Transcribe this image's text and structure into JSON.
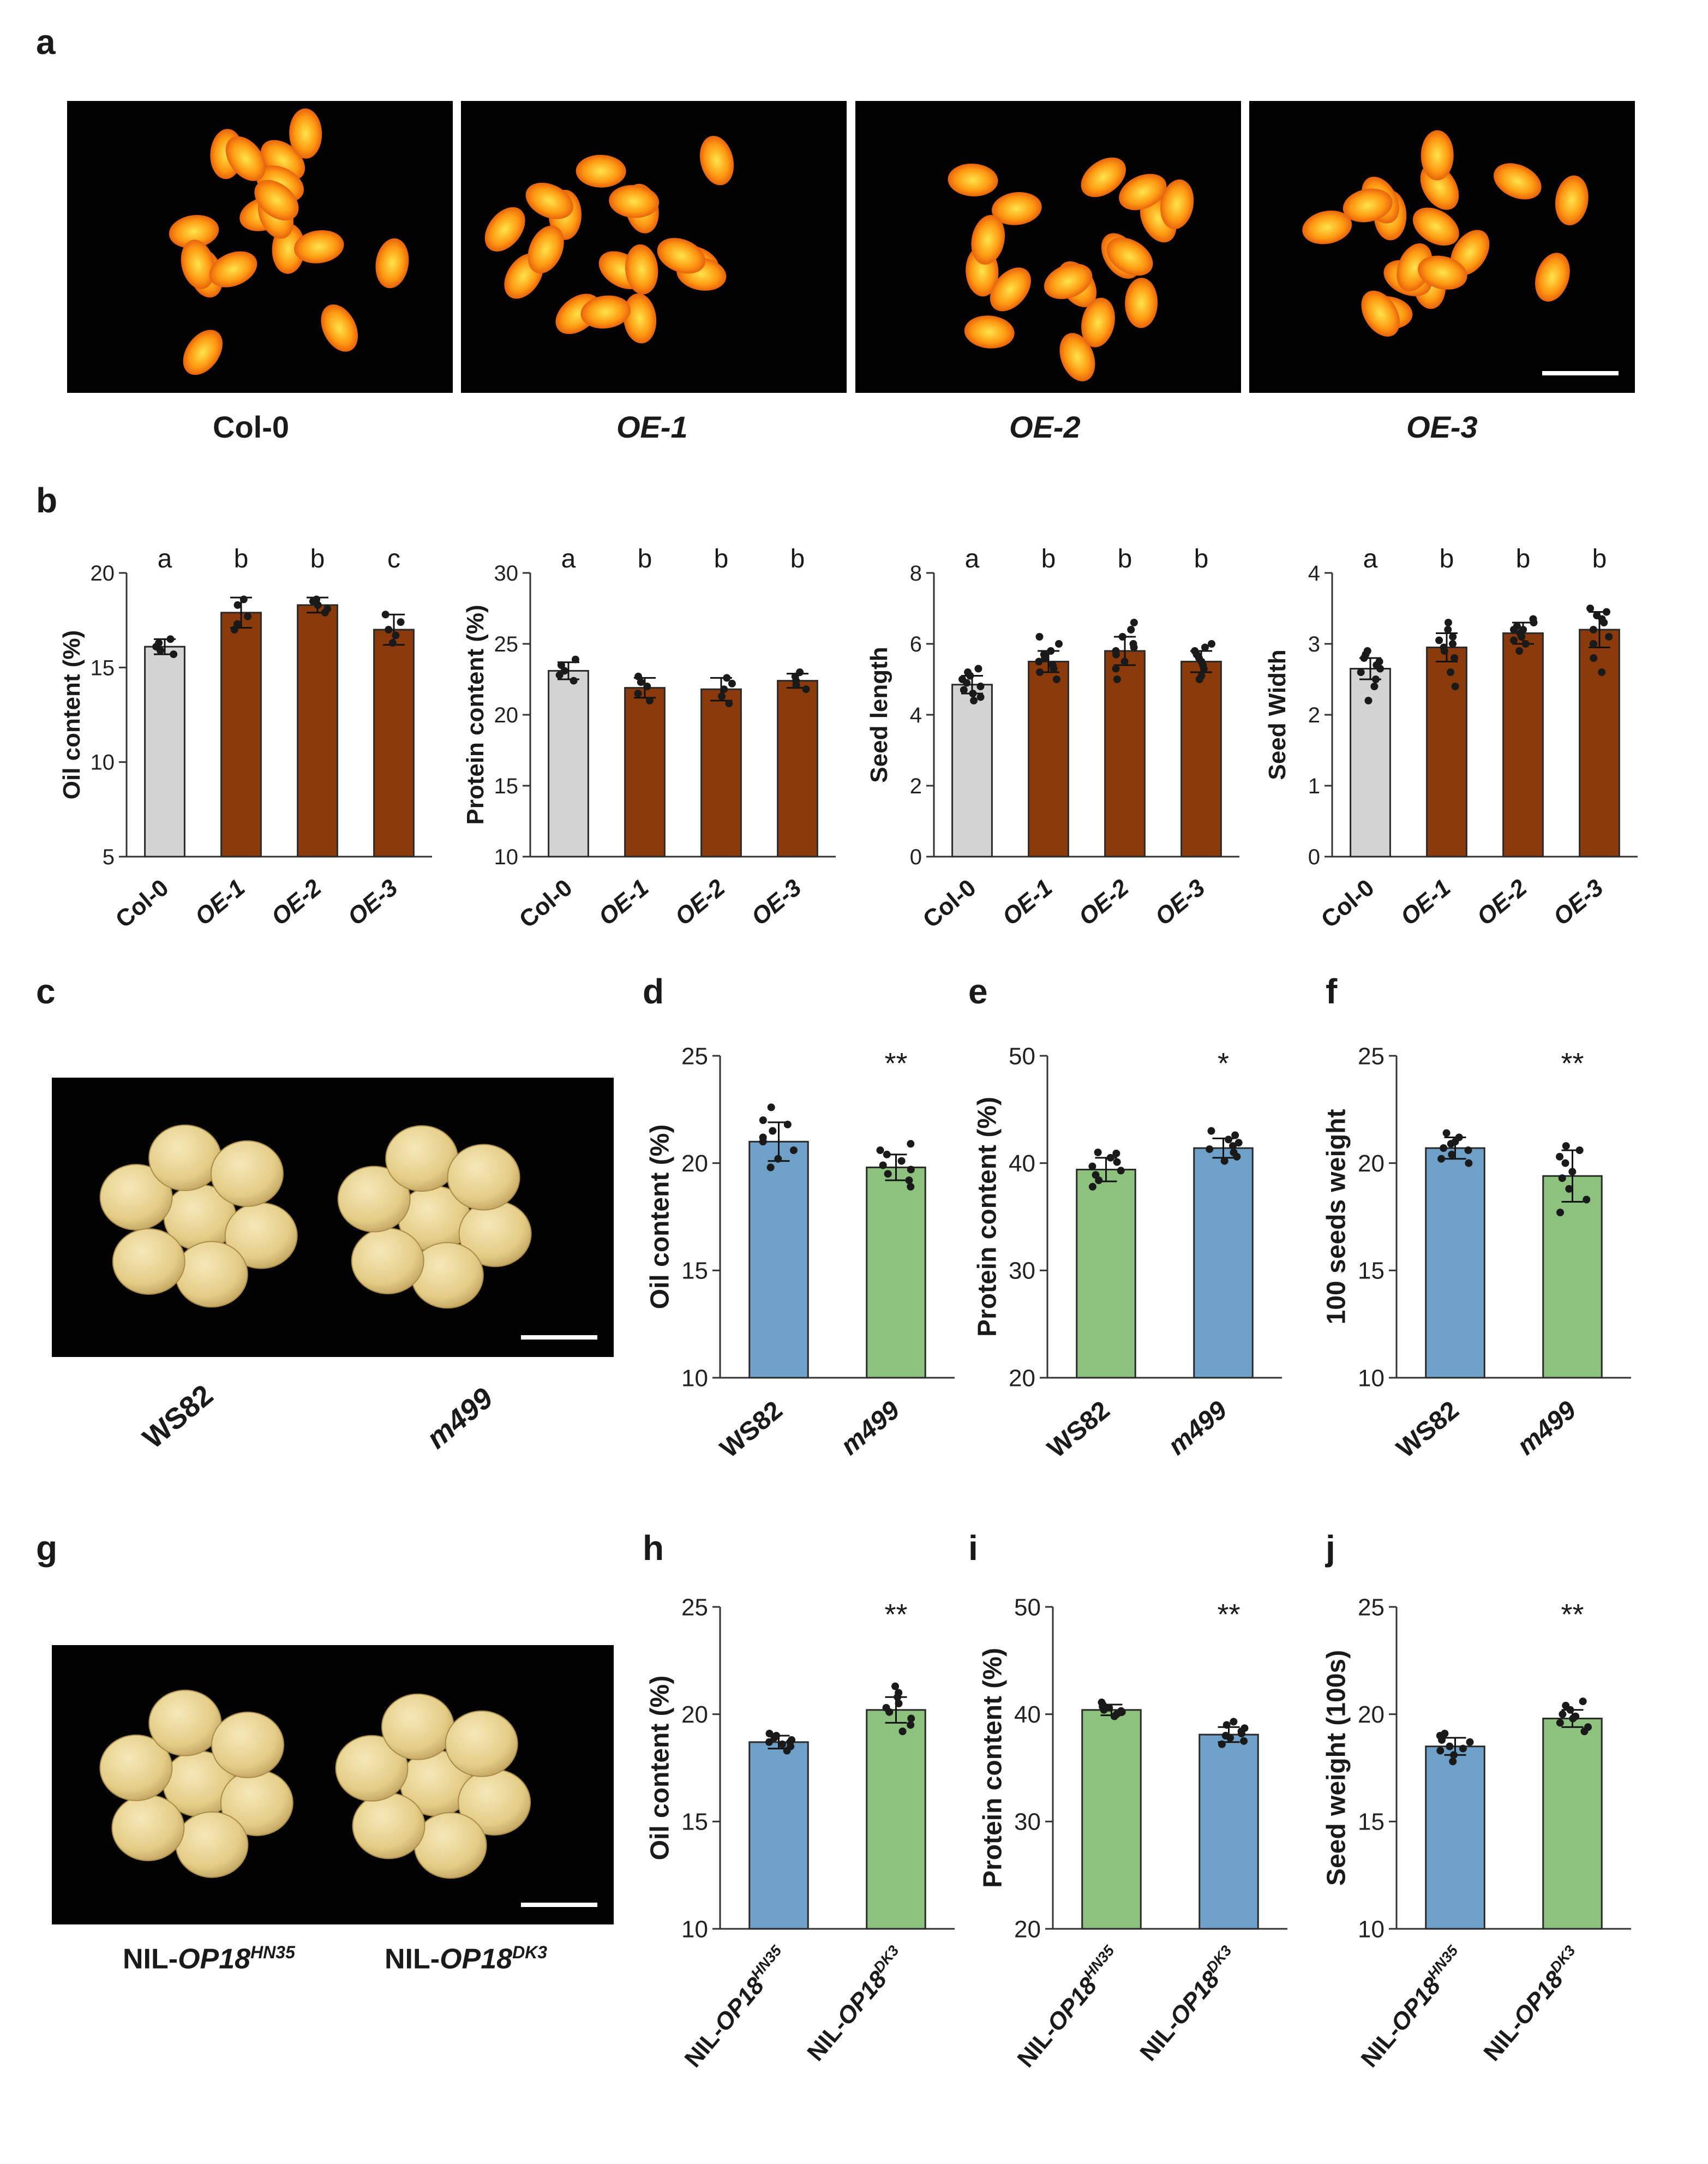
{
  "panel_letters": [
    "a",
    "b",
    "c",
    "d",
    "e",
    "f",
    "g",
    "h",
    "i",
    "j"
  ],
  "panel_a": {
    "labels": [
      {
        "text": "Col-0",
        "italic": false
      },
      {
        "text": "OE-1",
        "italic": true
      },
      {
        "text": "OE-2",
        "italic": true
      },
      {
        "text": "OE-3",
        "italic": true
      }
    ]
  },
  "panel_c": {
    "labels": [
      {
        "text": "WS82",
        "italic": false
      },
      {
        "text": "m499",
        "italic": true
      }
    ]
  },
  "panel_g": {
    "labels": [
      {
        "prefix": "NIL-",
        "gene": "OP18",
        "sup": "HN35"
      },
      {
        "prefix": "NIL-",
        "gene": "OP18",
        "sup": "DK3"
      }
    ]
  },
  "colors": {
    "control_gray": "#d3d3d3",
    "overexpression_brown": "#8b3a0c",
    "blue": "#6fa0c8",
    "green": "#8dc27e",
    "photo_background": "#020203"
  },
  "chart_data": [
    {
      "id": "b1",
      "type": "bar",
      "categories": [
        "Col-0",
        "OE-1",
        "OE-2",
        "OE-3"
      ],
      "category_italic": [
        false,
        true,
        true,
        true
      ],
      "values": [
        16.1,
        17.9,
        18.3,
        17.0
      ],
      "errors": [
        0.4,
        0.8,
        0.4,
        0.8
      ],
      "bar_colors": [
        "#d3d3d3",
        "#8b3a0c",
        "#8b3a0c",
        "#8b3a0c"
      ],
      "significance": [
        "a",
        "b",
        "b",
        "c"
      ],
      "ylabel": "Oil content (%)",
      "ylim": [
        5,
        20
      ],
      "yticks": [
        5,
        10,
        15,
        20
      ],
      "points": [
        [
          15.7,
          15.9,
          16.1,
          16.3,
          16.5
        ],
        [
          17.0,
          17.3,
          17.7,
          18.3,
          18.6
        ],
        [
          17.9,
          18.1,
          18.3,
          18.5,
          18.6
        ],
        [
          16.3,
          16.7,
          17.0,
          17.4,
          17.8
        ]
      ]
    },
    {
      "id": "b2",
      "type": "bar",
      "categories": [
        "Col-0",
        "OE-1",
        "OE-2",
        "OE-3"
      ],
      "category_italic": [
        false,
        true,
        true,
        true
      ],
      "values": [
        23.1,
        21.9,
        21.8,
        22.4
      ],
      "errors": [
        0.6,
        0.7,
        0.8,
        0.5
      ],
      "bar_colors": [
        "#d3d3d3",
        "#8b3a0c",
        "#8b3a0c",
        "#8b3a0c"
      ],
      "significance": [
        "a",
        "b",
        "b",
        "b"
      ],
      "ylabel": "Protein content (%)",
      "ylim": [
        10,
        30
      ],
      "yticks": [
        10,
        15,
        20,
        25,
        30
      ],
      "points": [
        [
          22.4,
          22.8,
          23.1,
          23.5,
          23.9
        ],
        [
          21.0,
          21.5,
          22.0,
          22.3,
          22.7
        ],
        [
          20.8,
          21.3,
          21.8,
          22.2,
          22.6
        ],
        [
          21.8,
          22.1,
          22.4,
          22.7,
          23.0
        ]
      ]
    },
    {
      "id": "b3",
      "type": "bar",
      "categories": [
        "Col-0",
        "OE-1",
        "OE-2",
        "OE-3"
      ],
      "category_italic": [
        false,
        true,
        true,
        true
      ],
      "values": [
        4.85,
        5.5,
        5.8,
        5.5
      ],
      "errors": [
        0.25,
        0.3,
        0.4,
        0.3
      ],
      "bar_colors": [
        "#d3d3d3",
        "#8b3a0c",
        "#8b3a0c",
        "#8b3a0c"
      ],
      "significance": [
        "a",
        "b",
        "b",
        "b"
      ],
      "ylabel": "Seed length",
      "ylim": [
        0,
        8
      ],
      "yticks": [
        0,
        2,
        4,
        6,
        8
      ],
      "points": [
        [
          4.4,
          4.5,
          4.6,
          4.7,
          4.8,
          4.9,
          5.0,
          5.1,
          5.2,
          5.3
        ],
        [
          5.0,
          5.2,
          5.3,
          5.4,
          5.5,
          5.6,
          5.7,
          5.8,
          6.0,
          6.2
        ],
        [
          5.0,
          5.3,
          5.5,
          5.7,
          5.8,
          5.9,
          6.0,
          6.2,
          6.4,
          6.6
        ],
        [
          5.0,
          5.1,
          5.3,
          5.4,
          5.5,
          5.6,
          5.7,
          5.8,
          5.9,
          6.0
        ]
      ]
    },
    {
      "id": "b4",
      "type": "bar",
      "categories": [
        "Col-0",
        "OE-1",
        "OE-2",
        "OE-3"
      ],
      "category_italic": [
        false,
        true,
        true,
        true
      ],
      "values": [
        2.65,
        2.95,
        3.15,
        3.2
      ],
      "errors": [
        0.15,
        0.2,
        0.15,
        0.25
      ],
      "bar_colors": [
        "#d3d3d3",
        "#8b3a0c",
        "#8b3a0c",
        "#8b3a0c"
      ],
      "significance": [
        "a",
        "b",
        "b",
        "b"
      ],
      "ylabel": "Seed Width",
      "ylim": [
        0,
        4
      ],
      "yticks": [
        0,
        1,
        2,
        3,
        4
      ],
      "points": [
        [
          2.2,
          2.4,
          2.5,
          2.6,
          2.65,
          2.7,
          2.75,
          2.8,
          2.85,
          2.9
        ],
        [
          2.4,
          2.6,
          2.8,
          2.9,
          2.95,
          3.0,
          3.05,
          3.1,
          3.2,
          3.3
        ],
        [
          2.9,
          3.0,
          3.05,
          3.1,
          3.15,
          3.2,
          3.2,
          3.25,
          3.3,
          3.35
        ],
        [
          2.6,
          2.8,
          3.0,
          3.1,
          3.2,
          3.3,
          3.35,
          3.4,
          3.45,
          3.5
        ]
      ]
    },
    {
      "id": "d",
      "type": "bar",
      "categories": [
        "WS82",
        "m499"
      ],
      "category_italic": [
        false,
        true
      ],
      "values": [
        21.0,
        19.8
      ],
      "errors": [
        0.9,
        0.6
      ],
      "bar_colors": [
        "#6fa0c8",
        "#8dc27e"
      ],
      "significance_star": "**",
      "ylabel": "Oil content (%)",
      "ylim": [
        10,
        25
      ],
      "yticks": [
        10,
        15,
        20,
        25
      ],
      "points": [
        [
          19.8,
          20.2,
          20.6,
          21.0,
          21.2,
          21.5,
          21.8,
          22.0,
          22.6
        ],
        [
          18.9,
          19.2,
          19.5,
          19.7,
          19.9,
          20.1,
          20.4,
          20.6,
          20.9
        ]
      ]
    },
    {
      "id": "e",
      "type": "bar",
      "categories": [
        "WS82",
        "m499"
      ],
      "category_italic": [
        false,
        true
      ],
      "values": [
        39.4,
        41.4
      ],
      "errors": [
        1.1,
        0.9
      ],
      "bar_colors": [
        "#8dc27e",
        "#6fa0c8"
      ],
      "significance_star": "*",
      "ylabel": "Protein content (%)",
      "ylim": [
        20,
        50
      ],
      "yticks": [
        20,
        30,
        40,
        50
      ],
      "points": [
        [
          37.8,
          38.4,
          38.9,
          39.3,
          39.7,
          40.1,
          40.5,
          40.9,
          41.0
        ],
        [
          40.2,
          40.6,
          41.0,
          41.3,
          41.6,
          41.9,
          42.2,
          42.6,
          43.0
        ]
      ]
    },
    {
      "id": "f",
      "type": "bar",
      "categories": [
        "WS82",
        "m499"
      ],
      "category_italic": [
        false,
        true
      ],
      "values": [
        20.7,
        19.4
      ],
      "errors": [
        0.5,
        1.2
      ],
      "bar_colors": [
        "#6fa0c8",
        "#8dc27e"
      ],
      "significance_star": "**",
      "ylabel": "100 seeds weight",
      "ylim": [
        10,
        25
      ],
      "yticks": [
        10,
        15,
        20,
        25
      ],
      "points": [
        [
          20.0,
          20.2,
          20.4,
          20.6,
          20.7,
          20.9,
          21.0,
          21.2,
          21.4
        ],
        [
          17.7,
          18.3,
          18.8,
          19.3,
          19.6,
          20.0,
          20.3,
          20.6,
          20.8
        ]
      ]
    },
    {
      "id": "h",
      "type": "bar",
      "categories": [
        {
          "prefix": "NIL-",
          "gene": "OP18",
          "sup": "HN35"
        },
        {
          "prefix": "NIL-",
          "gene": "OP18",
          "sup": "DK3"
        }
      ],
      "values": [
        18.7,
        20.2
      ],
      "errors": [
        0.3,
        0.6
      ],
      "bar_colors": [
        "#6fa0c8",
        "#8dc27e"
      ],
      "significance_star": "**",
      "ylabel": "Oil content (%)",
      "ylim": [
        10,
        25
      ],
      "yticks": [
        10,
        15,
        20,
        25
      ],
      "points": [
        [
          18.3,
          18.5,
          18.6,
          18.7,
          18.7,
          18.8,
          18.9,
          19.0,
          19.1
        ],
        [
          19.2,
          19.5,
          19.8,
          20.1,
          20.3,
          20.5,
          20.8,
          21.0,
          21.3
        ]
      ]
    },
    {
      "id": "i",
      "type": "bar",
      "categories": [
        {
          "prefix": "NIL-",
          "gene": "OP18",
          "sup": "HN35"
        },
        {
          "prefix": "NIL-",
          "gene": "OP18",
          "sup": "DK3"
        }
      ],
      "values": [
        40.4,
        38.1
      ],
      "errors": [
        0.5,
        0.7
      ],
      "bar_colors": [
        "#8dc27e",
        "#6fa0c8"
      ],
      "significance_star": "**",
      "ylabel": "Protein content (%)",
      "ylim": [
        20,
        50
      ],
      "yticks": [
        20,
        30,
        40,
        50
      ],
      "points": [
        [
          39.8,
          40.0,
          40.2,
          40.3,
          40.4,
          40.6,
          40.7,
          40.9,
          41.1
        ],
        [
          37.2,
          37.5,
          37.8,
          38.0,
          38.2,
          38.4,
          38.7,
          39.0,
          39.3
        ]
      ]
    },
    {
      "id": "j",
      "type": "bar",
      "categories": [
        {
          "prefix": "NIL-",
          "gene": "OP18",
          "sup": "HN35"
        },
        {
          "prefix": "NIL-",
          "gene": "OP18",
          "sup": "DK3"
        }
      ],
      "values": [
        18.5,
        19.8
      ],
      "errors": [
        0.4,
        0.4
      ],
      "bar_colors": [
        "#6fa0c8",
        "#8dc27e"
      ],
      "significance_star": "**",
      "ylabel": "Seed weight (100s)",
      "ylim": [
        10,
        25
      ],
      "yticks": [
        10,
        15,
        20,
        25
      ],
      "points": [
        [
          17.8,
          18.1,
          18.3,
          18.4,
          18.5,
          18.7,
          18.8,
          19.0,
          19.1
        ],
        [
          19.2,
          19.4,
          19.6,
          19.8,
          19.9,
          20.0,
          20.2,
          20.4,
          20.6
        ]
      ]
    }
  ]
}
